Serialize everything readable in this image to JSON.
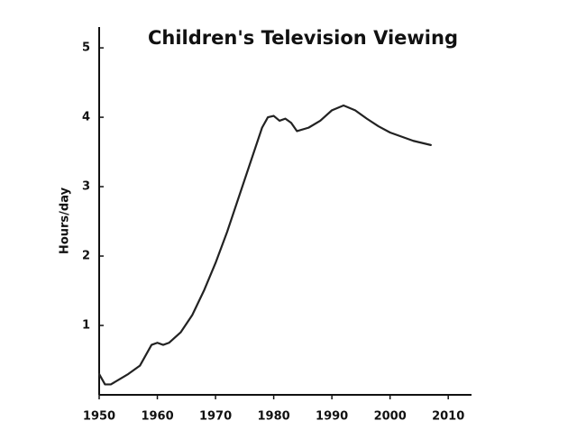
{
  "chart_data": {
    "type": "line",
    "title": "Children's Television Viewing",
    "y_label": "Hours/day",
    "x": [
      1950,
      1951,
      1952,
      1955,
      1957,
      1959,
      1960,
      1961,
      1962,
      1964,
      1966,
      1968,
      1970,
      1972,
      1974,
      1976,
      1978,
      1979,
      1980,
      1981,
      1982,
      1983,
      1984,
      1986,
      1988,
      1990,
      1992,
      1994,
      1996,
      1998,
      2000,
      2002,
      2004,
      2007
    ],
    "series": [
      {
        "name": "Hours/day",
        "color": "#222222",
        "values": [
          0.3,
          0.15,
          0.15,
          0.3,
          0.42,
          0.72,
          0.75,
          0.72,
          0.75,
          0.9,
          1.15,
          1.5,
          1.9,
          2.35,
          2.85,
          3.35,
          3.85,
          4.0,
          4.02,
          3.95,
          3.98,
          3.92,
          3.8,
          3.85,
          3.95,
          4.1,
          4.17,
          4.1,
          3.98,
          3.87,
          3.78,
          3.72,
          3.66,
          3.6
        ]
      }
    ],
    "xlim": [
      1950,
      2014
    ],
    "ylim": [
      0,
      5.3
    ],
    "xticks": [
      1950,
      1960,
      1970,
      1980,
      1990,
      2000,
      2010
    ],
    "yticks": [
      1,
      2,
      3,
      4,
      5
    ]
  }
}
